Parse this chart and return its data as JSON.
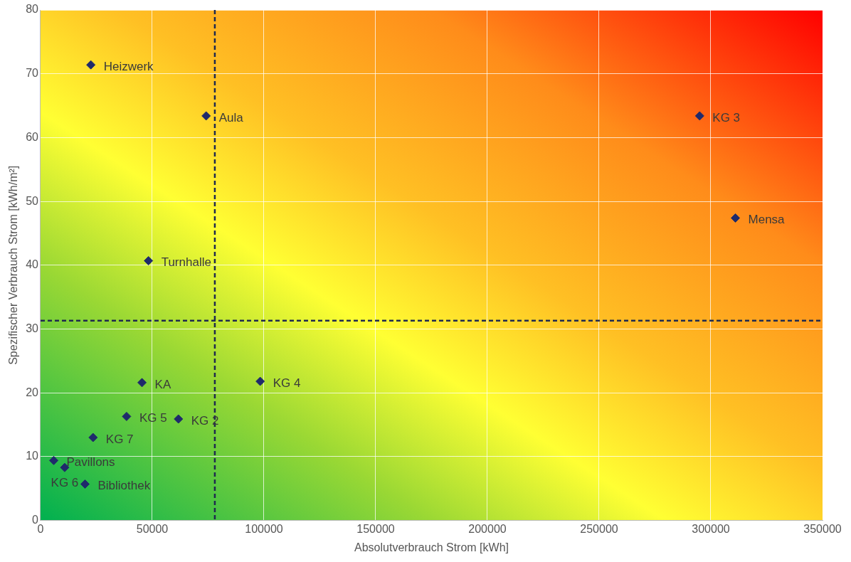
{
  "chart_data": {
    "type": "scatter",
    "xlabel": "Absolutverbrauch Strom [kWh]",
    "ylabel": "Spezifischer Verbrauch Strom [kWh/m²]",
    "x": [
      22500,
      74100,
      295000,
      311000,
      48300,
      45400,
      98300,
      38500,
      61700,
      23500,
      5900,
      10800,
      19900
    ],
    "series": [
      {
        "color": "#1f2a6b",
        "values": [
          71.4,
          63.4,
          63.4,
          47.4,
          40.7,
          21.6,
          21.8,
          16.3,
          15.9,
          13.0,
          9.4,
          8.3,
          5.7
        ]
      }
    ],
    "annotations": [
      {
        "text": "Heizwerk",
        "x": 22500,
        "y": 71.4
      },
      {
        "text": "Aula",
        "x": 74100,
        "y": 63.4
      },
      {
        "text": "KG 3",
        "x": 295000,
        "y": 63.4
      },
      {
        "text": "Mensa",
        "x": 311000,
        "y": 47.4
      },
      {
        "text": "Turnhalle",
        "x": 48300,
        "y": 40.7
      },
      {
        "text": "KA",
        "x": 45400,
        "y": 21.6
      },
      {
        "text": "KG 4",
        "x": 98300,
        "y": 21.8
      },
      {
        "text": "KG 5",
        "x": 38500,
        "y": 16.3
      },
      {
        "text": "KG 2",
        "x": 61700,
        "y": 15.9
      },
      {
        "text": "KG 7",
        "x": 23500,
        "y": 13.0
      },
      {
        "text": "Pavillons",
        "x": 5900,
        "y": 9.4
      },
      {
        "text": "KG 6",
        "x": 10800,
        "y": 8.3
      },
      {
        "text": "Bibliothek",
        "x": 19900,
        "y": 5.7
      }
    ],
    "ref_lines": [
      {
        "axis": "x",
        "value": 78000,
        "color": "#1f2a4f",
        "line_style": "dashed"
      },
      {
        "axis": "y",
        "value": 31.3,
        "color": "#1f2a4f",
        "line_style": "dashed"
      }
    ],
    "xlim": [
      0,
      350000
    ],
    "xticks": [
      0,
      50000,
      100000,
      150000,
      200000,
      250000,
      300000,
      350000
    ],
    "ylim": [
      0,
      80
    ],
    "yticks": [
      0,
      10,
      20,
      30,
      40,
      50,
      60,
      70,
      80
    ],
    "grid": true,
    "legend": false,
    "marker": "diamond"
  }
}
